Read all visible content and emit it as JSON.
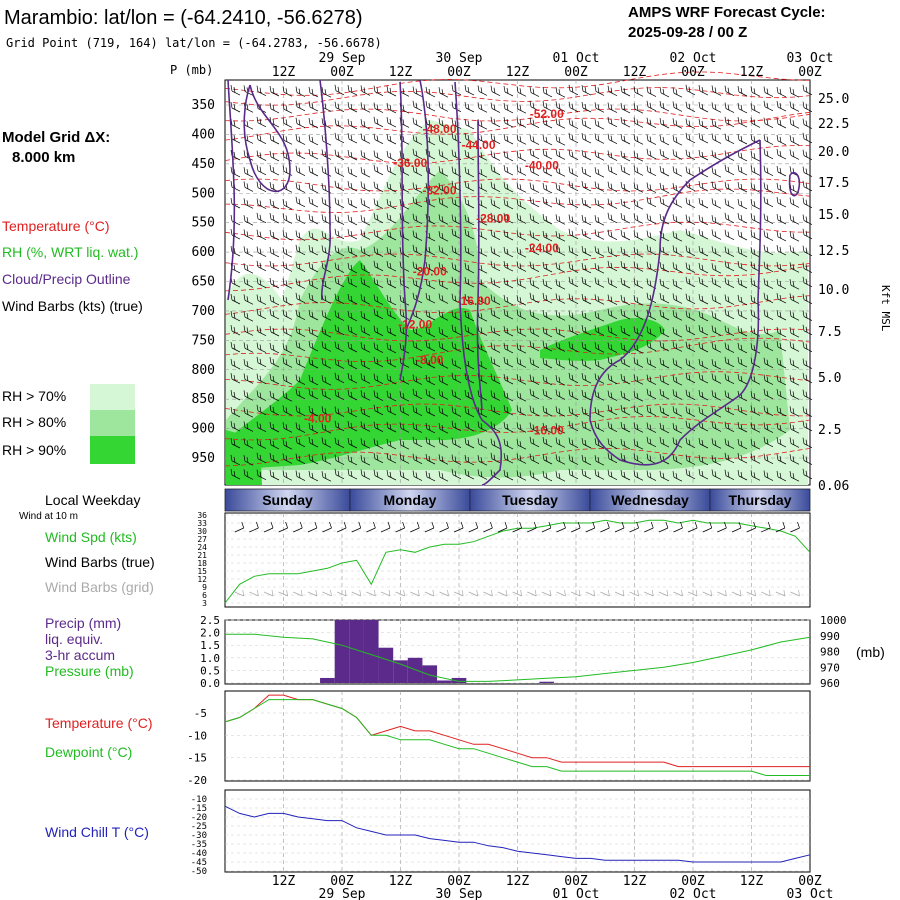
{
  "header": {
    "title": "Marambio:  lat/lon = (-64.2410, -56.6278)",
    "subtitle": "Grid Point (719, 164) lat/lon = (-64.2783, -56.6678)",
    "cycle_label": "AMPS WRF Forecast Cycle:",
    "cycle_value": "2025-09-28 / 00  Z",
    "grid_label": "Model Grid ΔX:",
    "grid_value": "8.000 km"
  },
  "time_axis": {
    "hour_labels": [
      "12Z",
      "00Z",
      "12Z",
      "00Z",
      "12Z",
      "00Z",
      "12Z",
      "00Z",
      "12Z",
      "00Z"
    ],
    "date_labels": [
      "29 Sep",
      "30 Sep",
      "01 Oct",
      "02 Oct",
      "03 Oct"
    ]
  },
  "legend_left": {
    "temperature": "Temperature (°C)",
    "rh": "RH (%, WRT liq. wat.)",
    "cloud": "Cloud/Precip Outline",
    "wind": "Wind Barbs (kts) (true)",
    "rh70": "RH > 70%",
    "rh80": "RH > 80%",
    "rh90": "RH > 90%"
  },
  "colors": {
    "temperature": "#e02020",
    "rh70": "#d6f7d6",
    "rh80": "#9ee69e",
    "rh90": "#33d633",
    "cloud": "#5a2a8a",
    "wind_spd": "#22bb22",
    "precip": "#5b2a8a",
    "dewpoint": "#22bb22",
    "windchill": "#2222bb",
    "grid": "#9a9a9a",
    "weekday_bar": "#3a4a9a"
  },
  "chart_data": [
    {
      "type": "heatmap",
      "name": "vertical-cross-section",
      "y_axis_label": "P (mb)",
      "pressure_ticks": [
        350,
        400,
        450,
        500,
        550,
        600,
        650,
        700,
        750,
        800,
        850,
        900,
        950
      ],
      "right_axis_label": "Kft MSL",
      "height_ticks": [
        "25.0",
        "22.5",
        "20.0",
        "17.5",
        "15.0",
        "12.5",
        "10.0",
        "7.5",
        "5.0",
        "2.5",
        "0.06"
      ],
      "temperature_labels": [
        {
          "text": "-52.00",
          "hour": 66,
          "p": 372
        },
        {
          "text": "-48.00",
          "hour": 44,
          "p": 398
        },
        {
          "text": "-44.00",
          "hour": 52,
          "p": 425
        },
        {
          "text": "-40.00",
          "hour": 65,
          "p": 460
        },
        {
          "text": "-36.00",
          "hour": 38,
          "p": 455
        },
        {
          "text": "-32.00",
          "hour": 44,
          "p": 502
        },
        {
          "text": "-28.00",
          "hour": 55,
          "p": 550
        },
        {
          "text": "-24.00",
          "hour": 65,
          "p": 600
        },
        {
          "text": "-20.00",
          "hour": 42,
          "p": 640
        },
        {
          "text": "-16.00",
          "hour": 51,
          "p": 690
        },
        {
          "text": "-12.00",
          "hour": 39,
          "p": 730
        },
        {
          "text": "-8.00",
          "hour": 42,
          "p": 790
        },
        {
          "text": "-4.00",
          "hour": 19,
          "p": 890
        },
        {
          "text": "-16.00",
          "hour": 66,
          "p": 910
        }
      ]
    },
    {
      "type": "line",
      "name": "wind-speed",
      "weekdays": [
        "Sunday",
        "Monday",
        "Tuesday",
        "Wednesday",
        "Thursday"
      ],
      "title_left": "Local Weekday",
      "subtitle_left": "Wind at 10 m",
      "labels": {
        "spd": "Wind Spd (kts)",
        "true": "Wind Barbs (true)",
        "grid": "Wind Barbs (grid)"
      },
      "yticks": [
        36,
        33,
        30,
        27,
        24,
        21,
        18,
        15,
        12,
        9,
        6,
        3
      ],
      "hours": [
        0,
        3,
        6,
        9,
        12,
        15,
        18,
        21,
        24,
        27,
        30,
        33,
        36,
        39,
        42,
        45,
        48,
        51,
        54,
        57,
        60,
        63,
        66,
        69,
        72,
        75,
        78,
        81,
        84,
        87,
        90,
        93,
        96,
        99,
        102,
        105,
        108,
        111,
        114,
        117,
        120
      ],
      "values": [
        3,
        10,
        13,
        14,
        14,
        14,
        15,
        16,
        18,
        19,
        10,
        22,
        23,
        22,
        24,
        25,
        25,
        26,
        28,
        30,
        31,
        31,
        32,
        33,
        33,
        33,
        34,
        33,
        33,
        34,
        34,
        33,
        34,
        33,
        33,
        33,
        32,
        31,
        30,
        28,
        22
      ]
    },
    {
      "type": "bar",
      "name": "precip-pressure",
      "labels": {
        "precip1": "Precip (mm)",
        "precip2": "liq. equiv.",
        "precip3": "3-hr accum",
        "pressure": "Pressure (mb)",
        "unit": "(mb)"
      },
      "precip_ticks": [
        "2.5",
        "2.0",
        "1.5",
        "1.0",
        "0.5",
        "0.0"
      ],
      "pressure_ticks": [
        1000,
        990,
        980,
        970,
        960
      ],
      "precip_hours": [
        21,
        24,
        27,
        30,
        33,
        36,
        39,
        42,
        45,
        48,
        51,
        54,
        57,
        60,
        63,
        66,
        69,
        72,
        75,
        78,
        81
      ],
      "precip_values": [
        0.2,
        2.5,
        2.5,
        2.5,
        1.4,
        0.9,
        1.0,
        0.7,
        0.1,
        0.2,
        0,
        0,
        0,
        0,
        0,
        0.05,
        0,
        0,
        0,
        0,
        0
      ],
      "pressure_hours": [
        0,
        6,
        12,
        18,
        24,
        30,
        36,
        42,
        48,
        54,
        60,
        66,
        72,
        78,
        84,
        90,
        96,
        102,
        108,
        114,
        120
      ],
      "pressure_values": [
        991,
        991,
        989,
        988,
        984,
        978,
        972,
        965,
        961,
        961,
        962,
        963,
        964,
        966,
        968,
        970,
        973,
        977,
        981,
        986,
        989
      ]
    },
    {
      "type": "line",
      "name": "temperature-dewpoint",
      "labels": {
        "temp": "Temperature (°C)",
        "dew": "Dewpoint (°C)"
      },
      "yticks": [
        -5,
        -10,
        -15,
        -20
      ],
      "hours": [
        0,
        3,
        6,
        9,
        12,
        15,
        18,
        21,
        24,
        27,
        30,
        33,
        36,
        39,
        42,
        45,
        48,
        51,
        54,
        57,
        60,
        63,
        66,
        69,
        72,
        75,
        78,
        81,
        84,
        87,
        90,
        93,
        96,
        99,
        102,
        105,
        108,
        111,
        114,
        117,
        120
      ],
      "temperature": [
        -7,
        -6,
        -4,
        -1,
        -1,
        -2,
        -2,
        -3,
        -4,
        -6,
        -10,
        -9,
        -8,
        -9,
        -9,
        -10,
        -11,
        -12,
        -12,
        -13,
        -14,
        -15,
        -15,
        -16,
        -16,
        -16,
        -16,
        -16,
        -16,
        -16,
        -16,
        -17,
        -17,
        -17,
        -17,
        -17,
        -17,
        -17,
        -17,
        -17,
        -17
      ],
      "dewpoint": [
        -7,
        -6,
        -4,
        -2,
        -2,
        -2,
        -2,
        -3,
        -4,
        -6,
        -10,
        -10,
        -11,
        -11,
        -11,
        -12,
        -13,
        -13,
        -14,
        -15,
        -16,
        -17,
        -17,
        -18,
        -18,
        -18,
        -18,
        -18,
        -18,
        -18,
        -18,
        -18,
        -18,
        -18,
        -18,
        -18,
        -18,
        -19,
        -19,
        -19,
        -19
      ]
    },
    {
      "type": "line",
      "name": "wind-chill",
      "label": "Wind Chill T (°C)",
      "yticks": [
        -10,
        -15,
        -20,
        -25,
        -30,
        -35,
        -40,
        -45,
        -50
      ],
      "hours": [
        0,
        3,
        6,
        9,
        12,
        15,
        18,
        21,
        24,
        27,
        30,
        33,
        36,
        39,
        42,
        45,
        48,
        51,
        54,
        57,
        60,
        63,
        66,
        69,
        72,
        75,
        78,
        81,
        84,
        87,
        90,
        93,
        96,
        99,
        102,
        105,
        108,
        111,
        114,
        117,
        120
      ],
      "values": [
        -14,
        -18,
        -20,
        -18,
        -18,
        -20,
        -21,
        -22,
        -22,
        -26,
        -28,
        -30,
        -30,
        -30,
        -32,
        -33,
        -34,
        -34,
        -36,
        -37,
        -39,
        -40,
        -41,
        -42,
        -43,
        -43,
        -44,
        -44,
        -44,
        -44,
        -44,
        -44,
        -45,
        -45,
        -45,
        -45,
        -45,
        -45,
        -45,
        -43,
        -41
      ]
    }
  ]
}
